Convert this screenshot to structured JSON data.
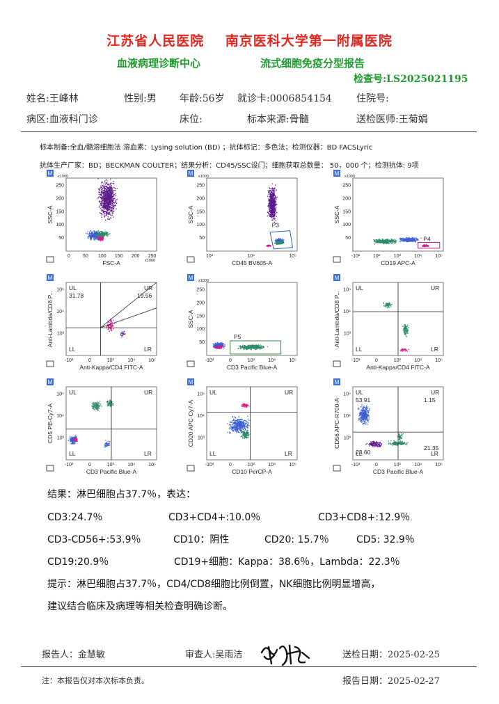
{
  "header": {
    "hospital": "江苏省人民医院    南京医科大学第一附属医院",
    "center": "血液病理诊断中心",
    "report_type": "流式细胞免疫分型报告",
    "exam_no": "检查号:LS2025021195"
  },
  "patient": {
    "name": "姓名:王峰林",
    "sex": "性别:男",
    "age": "年龄:56岁",
    "card": "就诊卡:0006854154",
    "inpatient": "住院号:",
    "ward": "病区:血液科门诊",
    "bed": "床位:",
    "specimen": "标本来源:骨髓",
    "doctor": "送检医师:王菊娟"
  },
  "method": {
    "line1": "标本制备:全血/髓溶细胞法 溶血素：Lysing solution (BD) ；抗体标记：多色法；检测仪器：BD FACSLyric",
    "line2": "抗体生产厂家：BD；BECKMAN COULTER；结果分析：CD45/SSC设门；细胞获取总数量： 50，000 个；检测抗体: 9项"
  },
  "plots": [
    {
      "x_label": "FSC-A",
      "y_label": "SSC-A",
      "x_ticks": [
        "0",
        "50",
        "100",
        "150",
        "200",
        "250"
      ],
      "x_scale": "x1000",
      "y_ticks": [
        "50",
        "100",
        "150",
        "200",
        "250"
      ],
      "y_scale": "x1000"
    },
    {
      "x_label": "CD45 BV605-A",
      "y_label": "SSC-A",
      "gate": "P3",
      "x_ticks": [
        "10³",
        "10⁴",
        "10⁵"
      ],
      "y_ticks": [
        "50",
        "100",
        "150",
        "200",
        "250"
      ],
      "y_scale": "x1000"
    },
    {
      "x_label": "CD19 APC-A",
      "y_label": "SSC-A",
      "gate": "P4",
      "x_ticks": [
        "-10²",
        "10²",
        "10³",
        "10⁴",
        "10⁵"
      ],
      "y_ticks": [
        "50",
        "100",
        "150",
        "200",
        "250"
      ],
      "y_scale": "x1000"
    },
    {
      "x_label": "Anti-Kappa/CD4 FITC-A",
      "y_label": "Anti-Lambda/CD8 P...",
      "q_ul": "UL",
      "v_ul": "31.78",
      "q_ur": "UR",
      "v_ur": "19.56",
      "q_ll": "LL",
      "q_lr": "LR",
      "x_ticks": [
        "-10³",
        "0",
        "10³",
        "10⁴",
        "10⁵"
      ],
      "y_ticks": [
        "10³",
        "10⁴",
        "10⁵"
      ]
    },
    {
      "x_label": "CD3 Pacific Blue-A",
      "y_label": "SSC-A",
      "gate": "P5",
      "x_ticks": [
        "-10³",
        "0",
        "10³",
        "10⁴",
        "10⁵"
      ],
      "y_ticks": [
        "50",
        "100",
        "150",
        "200",
        "250"
      ],
      "y_scale": "x1000"
    },
    {
      "x_label": "Anti-Kappa/CD4 FITC-A",
      "y_label": "Anti-Lambda/CD8 P...",
      "q_ul": "UL",
      "q_ur": "UR",
      "q_ll": "LL",
      "q_lr": "LR",
      "x_ticks": [
        "-10³",
        "0",
        "10³",
        "10⁴",
        "10⁵"
      ],
      "y_ticks": [
        "10³",
        "10⁴",
        "10⁵"
      ]
    },
    {
      "x_label": "CD3 Pacific Blue-A",
      "y_label": "CD5 PE-Cy7-A",
      "q_ul": "UL",
      "q_ur": "UR",
      "q_ll": "LL",
      "q_lr": "LR",
      "x_ticks": [
        "-10³",
        "0",
        "10³",
        "10⁴",
        "10⁵"
      ],
      "y_ticks": [
        "10³",
        "10⁴",
        "10⁵"
      ]
    },
    {
      "x_label": "CD10 PerCP-A",
      "y_label": "CD20 APC-Cy7-A",
      "q_ul": "UL",
      "q_ur": "UR",
      "q_ll": "LL",
      "q_lr": "LR",
      "x_ticks": [
        "-10³",
        "0",
        "10³",
        "10⁴",
        "10⁵"
      ],
      "y_ticks": [
        "10³",
        "10⁴",
        "10⁵"
      ]
    },
    {
      "x_label": "CD3 Pacific Blue-A",
      "y_label": "CD56 APC-R700-A",
      "q_ul": "UL",
      "v_ul": "53.91",
      "q_ur": "UR",
      "v_ur": "1.15",
      "q_ll": "LL",
      "v_ll": "23.60",
      "q_lr": "LR",
      "v_lr": "21.35",
      "x_ticks": [
        "-10³",
        "0",
        "10³",
        "10⁴",
        "10⁵"
      ],
      "y_ticks": [
        "10³",
        "10⁴",
        "10⁵"
      ]
    }
  ],
  "results": {
    "summary": "结果：淋巴细胞占37.7％，表达：",
    "cd3": "CD3:24.7％",
    "cd3cd4": "CD3+CD4+:10.0％",
    "cd3cd8": "CD3+CD8+:12.9％",
    "cd3cd56": "CD3-CD56+:53.9％",
    "cd10": "CD10：阴性",
    "cd20": "CD20: 15.7％",
    "cd5": "CD5: 32.9％",
    "cd19": "CD19:20.9％",
    "cd19cells": "CD19+细胞：Kappa：38.6％，Lambda：22.3％",
    "hint1": "提示：淋巴细胞占37.7％，CD4/CD8细胞比例倒置，NK细胞比例明显增高，",
    "hint2": "建议结合临床及病理等相关检查明确诊断。"
  },
  "footer": {
    "reporter": "报告人：金慧敏",
    "reviewer": "审查人:吴雨洁",
    "send_date": "送检日期：2025-02-25",
    "note": "注：本报告仅对本次标本负责。",
    "report_date": "报告日期：2025-02-27"
  },
  "colors": {
    "title_red": "#e0261f",
    "title_green": "#1f9b2e",
    "gate_blue": "#2a5cc4",
    "gate_green": "#2e8b3e",
    "gate_magenta": "#c4118a",
    "dot_purple": "#5b1a8c",
    "dot_blue": "#3a5fd0",
    "dot_teal": "#2d8a6a",
    "dot_pink": "#d61c8c"
  }
}
